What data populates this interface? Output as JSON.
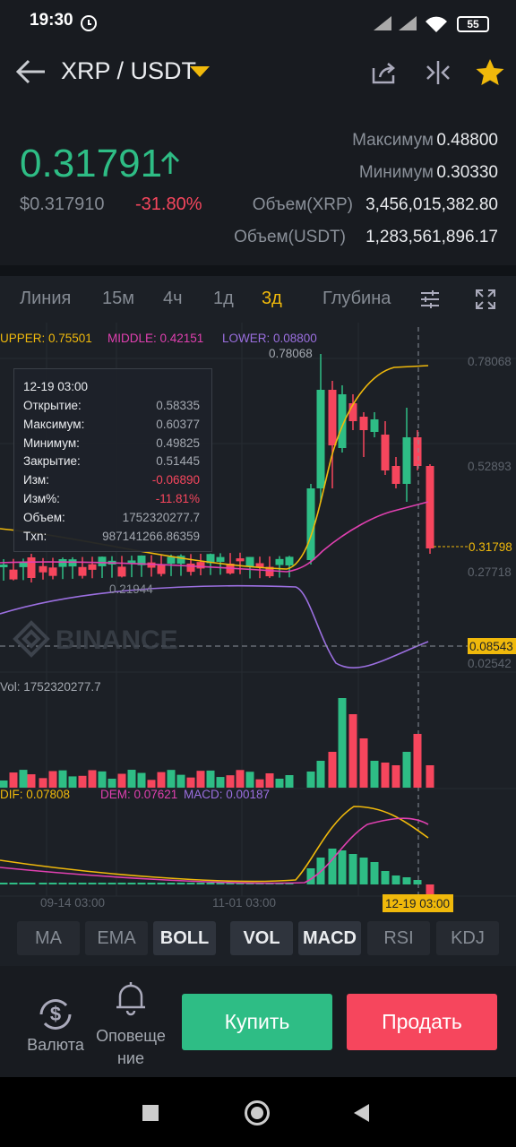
{
  "status_bar": {
    "time": "19:30",
    "battery": "55"
  },
  "header": {
    "pair": "XRP / USDT"
  },
  "ticker": {
    "price": "0.31791",
    "usd_price": "$0.317910",
    "change": "-31.80%",
    "stats": [
      {
        "label": "Максимум",
        "value": "0.48800"
      },
      {
        "label": "Минимум",
        "value": "0.30330"
      },
      {
        "label": "Объем(XRP)",
        "value": "3,456,015,382.80"
      },
      {
        "label": "Объем(USDT)",
        "value": "1,283,561,896.17"
      }
    ]
  },
  "intervals": [
    "Линия",
    "15м",
    "4ч",
    "1д",
    "3д",
    "Глубина"
  ],
  "chart": {
    "boll": {
      "upper": "UPPER: 0.75501",
      "middle": "MIDDLE: 0.42151",
      "lower": "LOWER: 0.08800"
    },
    "high_label": "0.78068",
    "low_label": "0.21944",
    "price_axis": [
      "0.78068",
      "0.52893",
      "0.27718",
      "0.02542"
    ],
    "current_price": "0.31798",
    "crosshair_price": "0.08543",
    "tooltip": {
      "date": "12-19 03:00",
      "rows": [
        {
          "label": "Открытие:",
          "value": "0.58335"
        },
        {
          "label": "Максимум:",
          "value": "0.60377"
        },
        {
          "label": "Минимум:",
          "value": "0.49825"
        },
        {
          "label": "Закрытие:",
          "value": "0.51445"
        },
        {
          "label": "Изм:",
          "value": "-0.06890"
        },
        {
          "label": "Изм%:",
          "value": "-11.81%"
        },
        {
          "label": "Объем:",
          "value": "1752320277.7"
        },
        {
          "label": "Txn:",
          "value": "987141266.86359"
        }
      ]
    },
    "watermark": "BINANCE",
    "volume_label": "Vol: 1752320277.7",
    "macd": {
      "dif": "DIF: 0.07808",
      "dem": "DEM: 0.07621",
      "macd": "MACD: 0.00187"
    },
    "time_axis": [
      "09-14 03:00",
      "11-01 03:00"
    ],
    "cursor_time": "12-19 03:00"
  },
  "indicators": [
    "MA",
    "EMA",
    "BOLL",
    "VOL",
    "MACD",
    "RSI",
    "KDJ"
  ],
  "bottom": {
    "currency": "Валюта",
    "alert": [
      "Оповеще",
      "ние"
    ],
    "buy": "Купить",
    "sell": "Продать"
  }
}
